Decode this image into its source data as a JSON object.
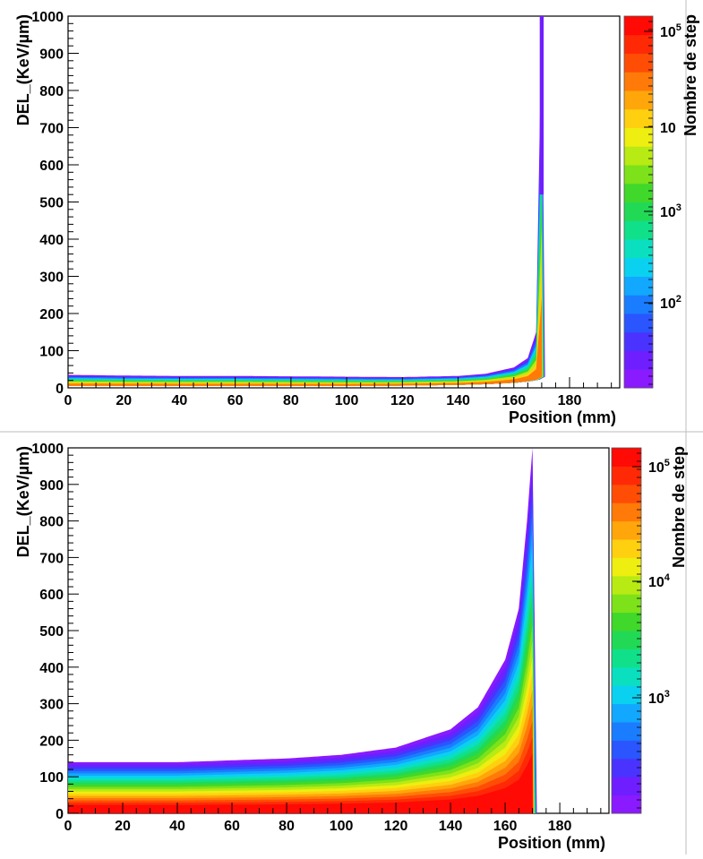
{
  "chart_data": [
    {
      "type": "heatmap",
      "xlabel": "Position (mm)",
      "ylabel": "DEL_(KeV/µm)",
      "colorbar_label": "Nombre de step",
      "xlim": [
        0,
        198
      ],
      "ylim": [
        0,
        1000
      ],
      "x_ticks": [
        "0",
        "20",
        "40",
        "60",
        "80",
        "100",
        "120",
        "140",
        "160",
        "180"
      ],
      "y_ticks": [
        "0",
        "100",
        "200",
        "300",
        "400",
        "500",
        "600",
        "700",
        "800",
        "900",
        "1000"
      ],
      "colorbar_ticks": [
        {
          "base": "10",
          "exp": "5"
        },
        {
          "base": "10",
          "exp": ""
        },
        {
          "base": "10",
          "exp": "3"
        },
        {
          "base": "10",
          "exp": "2"
        }
      ],
      "colorbar_scale": "log",
      "grid": false,
      "band": {
        "description_of_data": "energy deposit vs position; Bragg peak near 170 mm",
        "peak_position_mm": 170,
        "x": [
          0,
          20,
          40,
          60,
          80,
          100,
          120,
          140,
          150,
          160,
          165,
          168,
          170
        ],
        "upper_edge": [
          35,
          33,
          32,
          32,
          31,
          30,
          29,
          32,
          38,
          55,
          80,
          150,
          1000
        ],
        "lower_edge": [
          5,
          5,
          5,
          5,
          5,
          5,
          6,
          8,
          10,
          14,
          18,
          22,
          30
        ]
      }
    },
    {
      "type": "heatmap",
      "xlabel": "Position (mm)",
      "ylabel": "DEL_(KeV/µm)",
      "colorbar_label": "Nombre de step",
      "xlim": [
        0,
        198
      ],
      "ylim": [
        0,
        1000
      ],
      "x_ticks": [
        "0",
        "20",
        "40",
        "60",
        "80",
        "100",
        "120",
        "140",
        "160",
        "180"
      ],
      "y_ticks": [
        "0",
        "100",
        "200",
        "300",
        "400",
        "500",
        "600",
        "700",
        "800",
        "900",
        "1000"
      ],
      "colorbar_ticks": [
        {
          "base": "10",
          "exp": "5"
        },
        {
          "base": "10",
          "exp": "4"
        },
        {
          "base": "10",
          "exp": "3"
        }
      ],
      "colorbar_scale": "log",
      "grid": false,
      "band": {
        "description_of_data": "energy deposit vs position; Bragg peak near 170 mm",
        "peak_position_mm": 170,
        "x": [
          0,
          20,
          40,
          60,
          80,
          100,
          120,
          140,
          150,
          160,
          165,
          168,
          170
        ],
        "upper_edge": [
          140,
          140,
          140,
          145,
          150,
          160,
          180,
          230,
          290,
          420,
          560,
          800,
          1000
        ],
        "lower_edge": [
          0,
          0,
          0,
          0,
          0,
          0,
          0,
          0,
          0,
          0,
          0,
          0,
          0
        ]
      }
    }
  ]
}
